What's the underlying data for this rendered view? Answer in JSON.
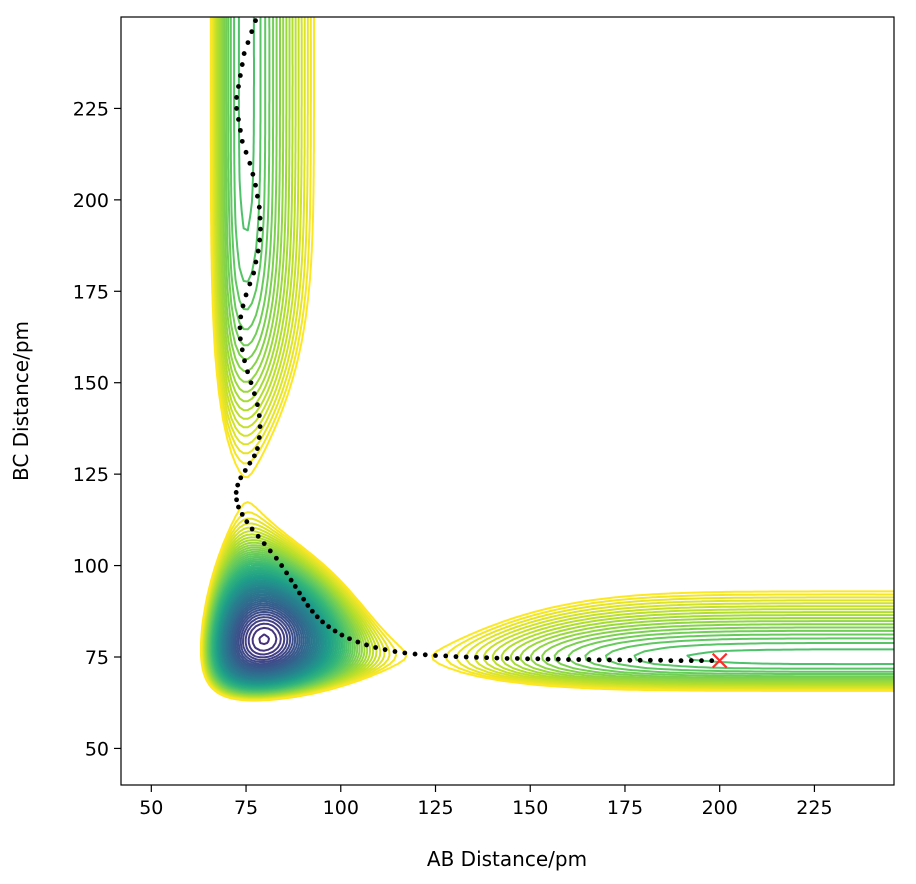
{
  "chart_data": {
    "type": "contour",
    "title": "",
    "xlabel": "AB Distance/pm",
    "ylabel": "BC Distance/pm",
    "xlim": [
      42,
      246
    ],
    "ylim": [
      40,
      250
    ],
    "xticks": [
      50,
      75,
      100,
      125,
      150,
      175,
      200,
      225
    ],
    "yticks": [
      50,
      75,
      100,
      125,
      150,
      175,
      200,
      225
    ],
    "colormap": "viridis",
    "grid": false,
    "legend": "none",
    "colors": {
      "trajectory": "#000000",
      "end_marker": "#ff2a2a",
      "frame": "#000000",
      "low_contour": "#440154",
      "high_contour": "#fde725"
    },
    "trajectory": {
      "marker": "dot",
      "points": [
        [
          77.5,
          249
        ],
        [
          76.5,
          246
        ],
        [
          75.5,
          243
        ],
        [
          74.5,
          240
        ],
        [
          74,
          237
        ],
        [
          73.5,
          234
        ],
        [
          73,
          231
        ],
        [
          72.5,
          228
        ],
        [
          72.5,
          225
        ],
        [
          73,
          222
        ],
        [
          73.5,
          219
        ],
        [
          74,
          216
        ],
        [
          75,
          213
        ],
        [
          76,
          210
        ],
        [
          76.8,
          207
        ],
        [
          77.5,
          204
        ],
        [
          78,
          201
        ],
        [
          78.5,
          198
        ],
        [
          78.7,
          195
        ],
        [
          78.8,
          192
        ],
        [
          78.6,
          189
        ],
        [
          78.2,
          186
        ],
        [
          77.6,
          183
        ],
        [
          77,
          180
        ],
        [
          76,
          177
        ],
        [
          75,
          174
        ],
        [
          74.2,
          171
        ],
        [
          73.6,
          168
        ],
        [
          73.4,
          165
        ],
        [
          73.5,
          162
        ],
        [
          74,
          159
        ],
        [
          74.6,
          156
        ],
        [
          75.4,
          153
        ],
        [
          76.3,
          150
        ],
        [
          77.2,
          147
        ],
        [
          78,
          144
        ],
        [
          78.5,
          141
        ],
        [
          78.7,
          138
        ],
        [
          78.5,
          135
        ],
        [
          78,
          132
        ],
        [
          77.2,
          130
        ],
        [
          76,
          128
        ],
        [
          74.8,
          126
        ],
        [
          73.6,
          124
        ],
        [
          72.8,
          122
        ],
        [
          72.4,
          120
        ],
        [
          72.5,
          118
        ],
        [
          73,
          116
        ],
        [
          74,
          114
        ],
        [
          75.2,
          112
        ],
        [
          76.6,
          110
        ],
        [
          78.2,
          108
        ],
        [
          79.8,
          106
        ],
        [
          81.4,
          104
        ],
        [
          83,
          102
        ],
        [
          84.4,
          100
        ],
        [
          85.7,
          98
        ],
        [
          86.9,
          96
        ],
        [
          88,
          94.3
        ],
        [
          89.1,
          92.5
        ],
        [
          90.2,
          90.8
        ],
        [
          91.3,
          89.1
        ],
        [
          92.5,
          87.5
        ],
        [
          93.8,
          86
        ],
        [
          95.2,
          84.6
        ],
        [
          96.8,
          83.3
        ],
        [
          98.5,
          82.1
        ],
        [
          100.3,
          81
        ],
        [
          102.3,
          80
        ],
        [
          104.5,
          79.1
        ],
        [
          106.8,
          78.3
        ],
        [
          109.2,
          77.6
        ],
        [
          111.7,
          77
        ],
        [
          114.3,
          76.5
        ],
        [
          116.9,
          76.1
        ],
        [
          119.6,
          75.8
        ],
        [
          122.3,
          75.6
        ],
        [
          125,
          75.4
        ],
        [
          127.7,
          75.3
        ],
        [
          130.4,
          75.1
        ],
        [
          133.1,
          75
        ],
        [
          135.8,
          74.9
        ],
        [
          138.5,
          74.8
        ],
        [
          141.2,
          74.7
        ],
        [
          143.9,
          74.6
        ],
        [
          146.6,
          74.6
        ],
        [
          149.3,
          74.5
        ],
        [
          152,
          74.5
        ],
        [
          154.7,
          74.4
        ],
        [
          157.4,
          74.4
        ],
        [
          160.1,
          74.3
        ],
        [
          162.8,
          74.3
        ],
        [
          165.5,
          74.3
        ],
        [
          168.2,
          74.2
        ],
        [
          170.9,
          74.2
        ],
        [
          173.6,
          74.2
        ],
        [
          176.3,
          74.1
        ],
        [
          179,
          74.1
        ],
        [
          181.7,
          74.1
        ],
        [
          184.4,
          74.1
        ],
        [
          187.1,
          74
        ],
        [
          189.8,
          74
        ],
        [
          192.5,
          74
        ],
        [
          195.2,
          74
        ],
        [
          197.9,
          74
        ]
      ]
    },
    "end_point": {
      "marker": "x",
      "x": 200,
      "y": 74
    }
  }
}
